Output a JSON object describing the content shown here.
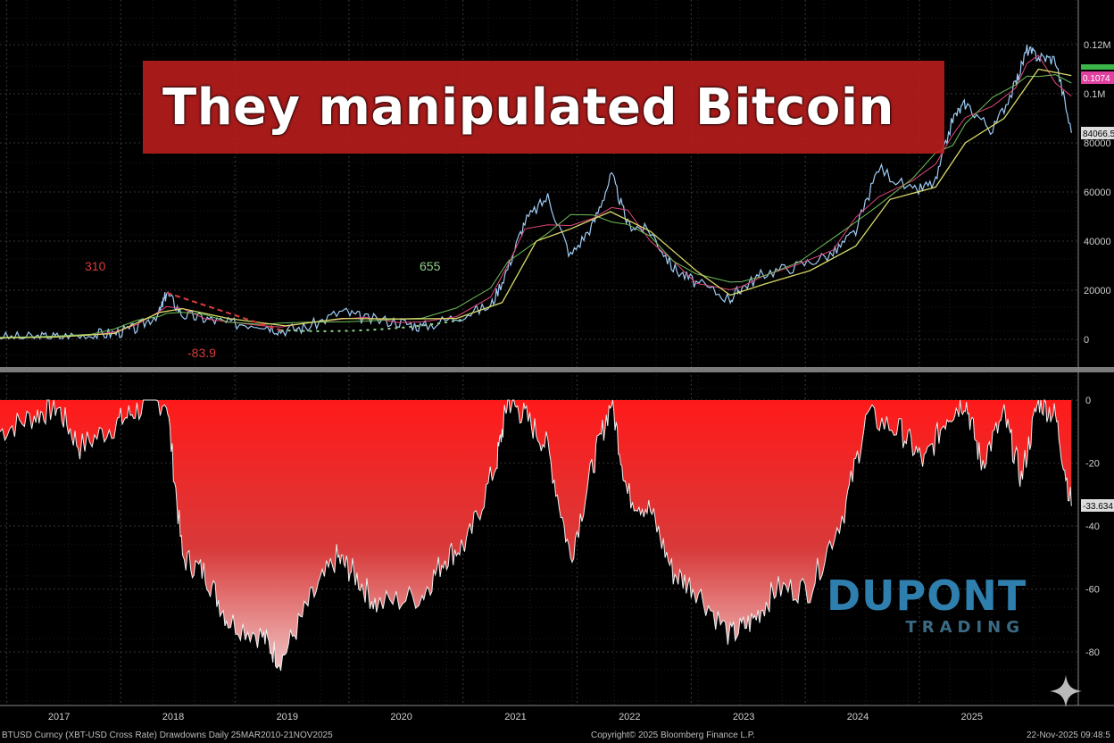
{
  "headline": "They manipulated Bitcoin",
  "logo": {
    "word": "DUPONT",
    "sub": "TRADING"
  },
  "footer": {
    "left": "BTUSD Curncy (XBT-USD Cross Rate) Drawdowns Daily 25MAR2010-21NOV2025",
    "center": "Copyright© 2025 Bloomberg Finance L.P.",
    "right": "22-Nov-2025 09:48:5"
  },
  "colors": {
    "price": "#9ecbf5",
    "ma_fast": "#e0457b",
    "ma_mid": "#6fbf5a",
    "ma_slow": "#d8d86a",
    "drawdown_fill": "#ff1a1a",
    "annotation_red": "#d83a3a",
    "annotation_green": "#8fd18a"
  },
  "chart_data": [
    {
      "type": "line",
      "panel": "price",
      "x_ticks": [
        "2017",
        "2018",
        "2019",
        "2020",
        "2021",
        "2022",
        "2023",
        "2024",
        "2025"
      ],
      "y_ticks": [
        "0",
        "20000",
        "40000",
        "60000",
        "80000",
        "0.1M",
        "0.12M"
      ],
      "ylim": [
        0,
        125000
      ],
      "last_value_labels": [
        "0.1074",
        "84066.5"
      ],
      "annotations": [
        "310",
        "-83.9",
        "655"
      ],
      "series": [
        {
          "x": [
            2016.5,
            2016.8,
            2017.0,
            2017.3,
            2017.5,
            2017.7,
            2017.9,
            2017.96,
            2018.1,
            2018.3,
            2018.5,
            2018.8,
            2018.96,
            2019.2,
            2019.5,
            2019.7,
            2020.0,
            2020.2,
            2020.5,
            2020.8,
            2020.95,
            2021.1,
            2021.3,
            2021.5,
            2021.7,
            2021.86,
            2022.0,
            2022.2,
            2022.4,
            2022.6,
            2022.9,
            2023.0,
            2023.2,
            2023.5,
            2023.8,
            2024.0,
            2024.2,
            2024.5,
            2024.7,
            2024.85,
            2024.96,
            2025.2,
            2025.4,
            2025.5,
            2025.6,
            2025.75,
            2025.89
          ],
          "values": [
            650,
            700,
            1000,
            1800,
            2600,
            4500,
            11000,
            19000,
            10000,
            8500,
            6500,
            6400,
            3700,
            5000,
            11500,
            8300,
            7200,
            5000,
            9200,
            13500,
            29000,
            48000,
            58000,
            34000,
            47000,
            67000,
            47000,
            44000,
            29000,
            23000,
            16500,
            21000,
            27000,
            30000,
            35000,
            44000,
            70000,
            60000,
            64000,
            90000,
            96000,
            85000,
            104000,
            118000,
            115000,
            114000,
            84066.5
          ]
        },
        {
          "name": "",
          "x": [
            2016.5,
            2017.0,
            2017.5,
            2017.9,
            2018.1,
            2018.5,
            2019.0,
            2019.5,
            2020.0,
            2020.5,
            2020.9,
            2021.2,
            2021.5,
            2021.85,
            2022.2,
            2022.6,
            2022.9,
            2023.2,
            2023.6,
            2024.0,
            2024.3,
            2024.7,
            2024.96,
            2025.3,
            2025.6,
            2025.89
          ],
          "values": [
            600,
            950,
            2400,
            11000,
            12500,
            8500,
            5500,
            8500,
            8300,
            8500,
            15000,
            40000,
            45000,
            52000,
            44000,
            28000,
            18000,
            22500,
            28000,
            38000,
            57000,
            62000,
            80000,
            90000,
            110000,
            107400
          ]
        }
      ]
    },
    {
      "type": "area",
      "panel": "drawdown",
      "y_ticks": [
        "0",
        "-20",
        "-40",
        "-60",
        "-80"
      ],
      "ylim": [
        -90,
        0
      ],
      "last_value_label": "-33.634",
      "x": [
        2016.5,
        2016.8,
        2017.0,
        2017.2,
        2017.5,
        2017.7,
        2017.96,
        2018.1,
        2018.3,
        2018.5,
        2018.8,
        2018.96,
        2019.2,
        2019.45,
        2019.6,
        2019.8,
        2020.2,
        2020.4,
        2020.6,
        2020.85,
        2020.95,
        2021.1,
        2021.3,
        2021.5,
        2021.7,
        2021.86,
        2022.0,
        2022.2,
        2022.4,
        2022.6,
        2022.9,
        2023.1,
        2023.3,
        2023.6,
        2023.9,
        2024.1,
        2024.4,
        2024.6,
        2024.8,
        2024.96,
        2025.1,
        2025.3,
        2025.45,
        2025.6,
        2025.75,
        2025.89
      ],
      "values": [
        -10,
        -5,
        -2,
        -15,
        -8,
        -3,
        0,
        -50,
        -55,
        -70,
        -75,
        -83,
        -65,
        -50,
        -55,
        -65,
        -62,
        -50,
        -45,
        -20,
        0,
        -5,
        -15,
        -50,
        -20,
        0,
        -30,
        -35,
        -55,
        -60,
        -75,
        -70,
        -60,
        -60,
        -35,
        -5,
        -10,
        -20,
        -5,
        0,
        -20,
        -5,
        -25,
        0,
        -5,
        -33.634
      ]
    }
  ]
}
